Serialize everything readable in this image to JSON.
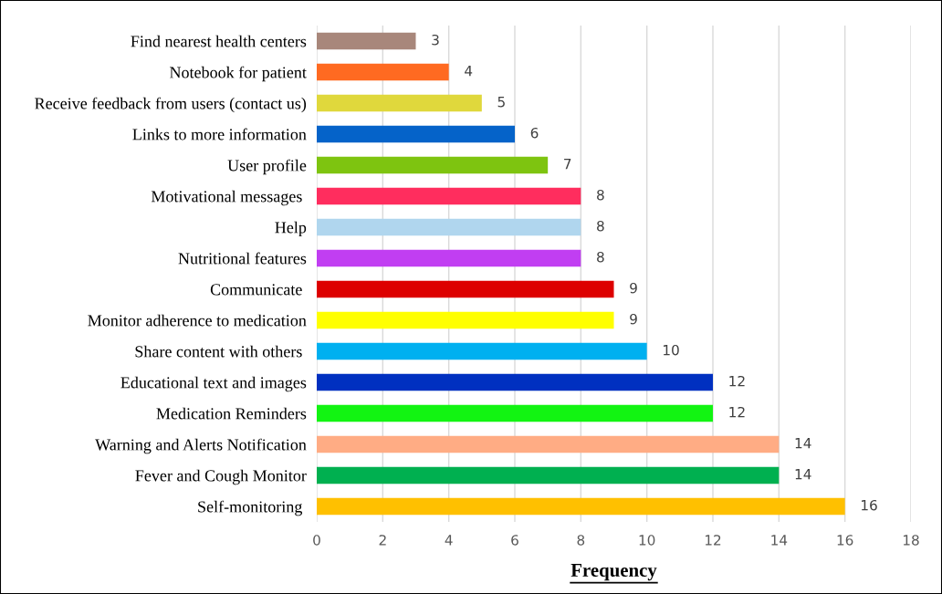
{
  "chart_data": {
    "type": "bar",
    "orientation": "horizontal",
    "xlabel": "Frequency",
    "categories": [
      "Find nearest health centers",
      "Notebook for patient",
      "Receive feedback from users (contact us)",
      "Links to more information",
      "User profile",
      "Motivational messages ",
      "Help",
      "Nutritional features",
      "Communicate ",
      "Monitor adherence to medication",
      "Share content with others ",
      "Educational text and images",
      "Medication Reminders",
      "Warning and Alerts Notification",
      "Fever and Cough Monitor",
      "Self-monitoring "
    ],
    "values": [
      3,
      4,
      5,
      6,
      7,
      8,
      8,
      8,
      9,
      9,
      10,
      12,
      12,
      14,
      14,
      16
    ],
    "colors": [
      "#a8877b",
      "#ff6a21",
      "#e0d83c",
      "#0563c9",
      "#7ec410",
      "#ff2d5e",
      "#b0d6ee",
      "#c13ef2",
      "#dd0000",
      "#ffff00",
      "#00b0f0",
      "#0030c0",
      "#12f412",
      "#ffac84",
      "#00b050",
      "#ffc000"
    ],
    "xlim": [
      0,
      18
    ],
    "xticks": [
      0,
      2,
      4,
      6,
      8,
      10,
      12,
      14,
      16,
      18
    ],
    "grid": "x",
    "data_labels": true
  }
}
